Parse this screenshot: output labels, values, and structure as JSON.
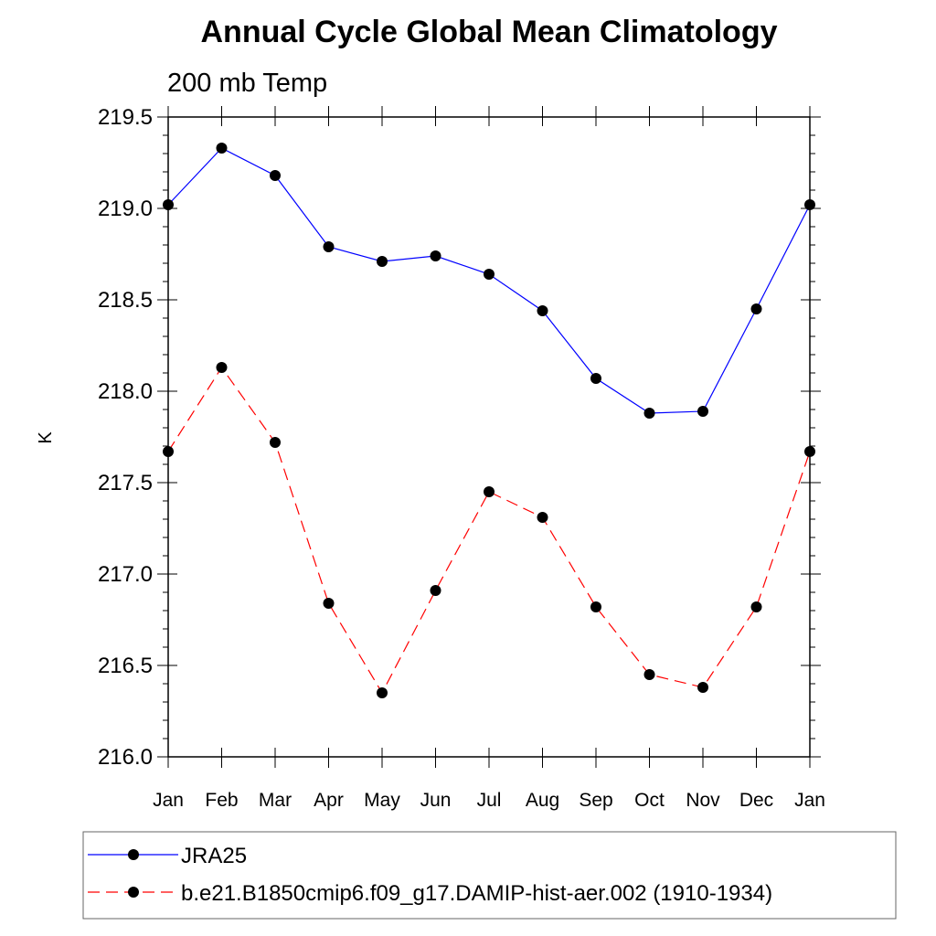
{
  "chart_data": {
    "type": "line",
    "title": "Annual Cycle Global Mean Climatology",
    "subtitle": "200 mb Temp",
    "xlabel": "",
    "ylabel": "K",
    "categories": [
      "Jan",
      "Feb",
      "Mar",
      "Apr",
      "May",
      "Jun",
      "Jul",
      "Aug",
      "Sep",
      "Oct",
      "Nov",
      "Dec",
      "Jan"
    ],
    "ylim": [
      216.0,
      219.5
    ],
    "yticks": [
      "216.0",
      "216.5",
      "217.0",
      "217.5",
      "218.0",
      "218.5",
      "219.0",
      "219.5"
    ],
    "grid": false,
    "legend_position": "bottom",
    "series": [
      {
        "name": "JRA25",
        "color": "#0000ff",
        "line_style": "solid",
        "marker": "filled-circle",
        "values": [
          219.02,
          219.33,
          219.18,
          218.79,
          218.71,
          218.74,
          218.64,
          218.44,
          218.07,
          217.88,
          217.89,
          218.45,
          219.02
        ]
      },
      {
        "name": "b.e21.B1850cmip6.f09_g17.DAMIP-hist-aer.002 (1910-1934)",
        "color": "#ff0000",
        "line_style": "dashed",
        "marker": "filled-circle",
        "values": [
          217.67,
          218.13,
          217.72,
          216.84,
          216.35,
          216.91,
          217.45,
          217.31,
          216.82,
          216.45,
          216.38,
          216.82,
          217.67
        ]
      }
    ]
  }
}
